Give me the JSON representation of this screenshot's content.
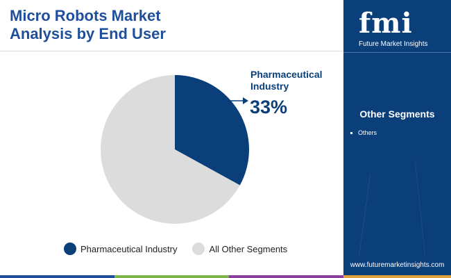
{
  "header": {
    "title": "Micro Robots Market Analysis by End User"
  },
  "chart_data": {
    "type": "pie",
    "slices": [
      {
        "label": "Pharmaceutical Industry",
        "value": 33,
        "color": "#0b3f7a"
      },
      {
        "label": "All Other Segments",
        "value": 67,
        "color": "#dcdcdc"
      }
    ],
    "callout": {
      "label": "Pharmaceutical Industry",
      "value_text": "33%"
    },
    "legend": [
      "Pharmaceutical Industry",
      "All Other Segments"
    ],
    "legend_position": "bottom"
  },
  "sidebar": {
    "logo_text": "fmi",
    "logo_subtitle": "Future Market Insights",
    "segments_title": "Other Segments",
    "segments": [
      "Others"
    ],
    "url": "www.futuremarketinsights.com"
  },
  "colors": {
    "title": "#1f4f9b",
    "sidebar_bg": "#0b3f7a",
    "footer": [
      "#1f4f9b",
      "#7ab648",
      "#8a3f9e",
      "#e0a13a"
    ]
  }
}
